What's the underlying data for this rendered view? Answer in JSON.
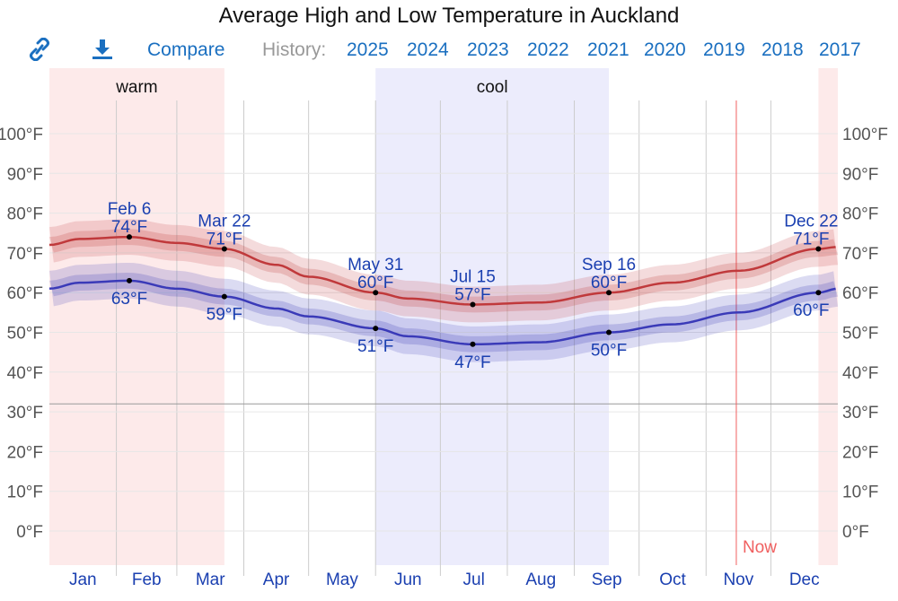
{
  "title": "Average High and Low Temperature in Auckland",
  "toolbar": {
    "link_icon": "link-icon",
    "download_icon": "download-icon",
    "compare": "Compare",
    "history_label": "History:",
    "years": [
      "2025",
      "2024",
      "2023",
      "2022",
      "2021",
      "2020",
      "2019",
      "2018",
      "2017"
    ]
  },
  "colors": {
    "high": "#c0393b",
    "low": "#3a3ab8",
    "warm": "#fdeaea",
    "cool": "#ececfc",
    "now": "#f06060",
    "label": "#1a3fb0"
  },
  "chart_data": {
    "type": "line",
    "title": "Average High and Low Temperature in Auckland",
    "xlabel": "",
    "ylabel": "",
    "ylim": [
      -8.5,
      116
    ],
    "yticks": [
      0,
      10,
      20,
      30,
      40,
      50,
      60,
      70,
      80,
      90,
      100
    ],
    "ytick_labels": [
      "0°F",
      "10°F",
      "20°F",
      "30°F",
      "40°F",
      "50°F",
      "60°F",
      "70°F",
      "80°F",
      "90°F",
      "100°F"
    ],
    "months": [
      "Jan",
      "Feb",
      "Mar",
      "Apr",
      "May",
      "Jun",
      "Jul",
      "Aug",
      "Sep",
      "Oct",
      "Nov",
      "Dec"
    ],
    "freezing": 32,
    "seasons": [
      {
        "name": "warm",
        "label": "warm",
        "ranges": [
          [
            0,
            81
          ],
          [
            356,
            365
          ]
        ]
      },
      {
        "name": "cool",
        "label": "cool",
        "ranges": [
          [
            151,
            259
          ]
        ]
      }
    ],
    "now": {
      "label": "Now",
      "day": 318
    },
    "band_inner": 2,
    "band_outer": 4.5,
    "series": [
      {
        "name": "high",
        "x": [
          0,
          14,
          37,
          59,
          81,
          105,
          120,
          151,
          166,
          196,
          227,
          259,
          288,
          319,
          356,
          365
        ],
        "values": [
          72,
          73.5,
          74,
          72.5,
          71,
          67,
          64,
          60,
          58.5,
          57,
          57.5,
          60,
          62.5,
          65.5,
          71,
          71.5
        ]
      },
      {
        "name": "low",
        "x": [
          0,
          14,
          37,
          59,
          81,
          105,
          120,
          151,
          166,
          196,
          227,
          259,
          288,
          319,
          356,
          365
        ],
        "values": [
          61,
          62.5,
          63,
          61,
          59,
          56,
          54,
          51,
          49,
          47,
          47.5,
          50,
          52,
          55,
          60,
          61
        ]
      }
    ],
    "annotations": [
      {
        "day": 37,
        "date": "Feb 6",
        "high": "74°F",
        "low": "63°F",
        "hv": 74,
        "lv": 63
      },
      {
        "day": 81,
        "date": "Mar 22",
        "high": "71°F",
        "low": "59°F",
        "hv": 71,
        "lv": 59
      },
      {
        "day": 151,
        "date": "May 31",
        "high": "60°F",
        "low": "51°F",
        "hv": 60,
        "lv": 51
      },
      {
        "day": 196,
        "date": "Jul 15",
        "high": "57°F",
        "low": "47°F",
        "hv": 57,
        "lv": 47
      },
      {
        "day": 259,
        "date": "Sep 16",
        "high": "60°F",
        "low": "50°F",
        "hv": 60,
        "lv": 50
      },
      {
        "day": 356,
        "date": "Dec 22",
        "high": "71°F",
        "low": "60°F",
        "hv": 71,
        "lv": 60
      }
    ]
  }
}
